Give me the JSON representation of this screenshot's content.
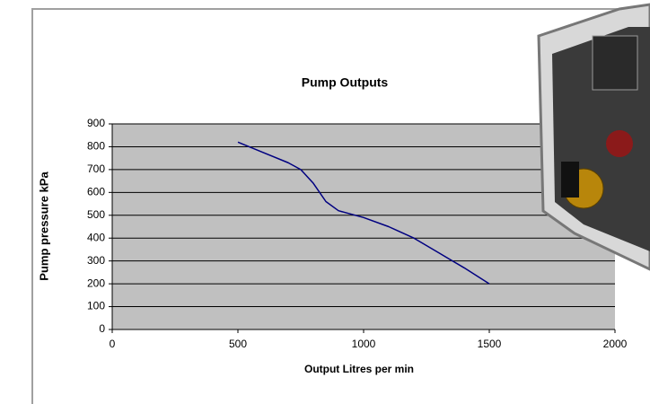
{
  "chart_data": {
    "type": "line",
    "title": "Pump Outputs",
    "x_label": "Output Litres per min",
    "y_label": "Pump pressure kPa",
    "x": [
      500,
      600,
      700,
      750,
      800,
      850,
      900,
      1000,
      1100,
      1200,
      1300,
      1400,
      1500
    ],
    "values": [
      820,
      775,
      730,
      700,
      640,
      560,
      520,
      490,
      450,
      400,
      335,
      270,
      200
    ],
    "color": "#000080",
    "xlim": [
      0,
      2000
    ],
    "xticks": [
      0,
      500,
      1000,
      1500,
      2000
    ],
    "ylim": [
      0,
      900
    ],
    "yticks": [
      0,
      100,
      200,
      300,
      400,
      500,
      600,
      700,
      800,
      900
    ],
    "grid": true
  }
}
